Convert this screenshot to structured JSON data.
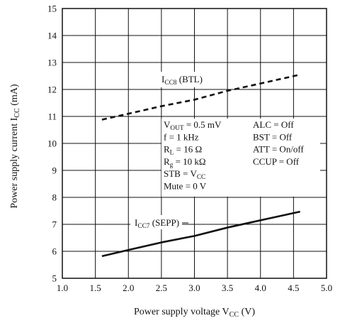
{
  "chart_data": {
    "type": "line",
    "xlabel": {
      "main": "Power supply voltage  V",
      "sub": "CC",
      "tail": "  (V)"
    },
    "ylabel": {
      "main": "Power supply current  I",
      "sub": "CC",
      "tail": "  (mA)"
    },
    "xlim": [
      1.0,
      5.0
    ],
    "ylim": [
      5,
      15
    ],
    "x_ticks": [
      1.0,
      1.5,
      2.0,
      2.5,
      3.0,
      3.5,
      4.0,
      4.5,
      5.0
    ],
    "x_tick_labels": [
      "1.0",
      "1.5",
      "2.0",
      "2.5",
      "3.0",
      "3.5",
      "4.0",
      "4.5",
      "5.0"
    ],
    "y_ticks": [
      5,
      6,
      7,
      8,
      9,
      10,
      11,
      12,
      13,
      14,
      15
    ],
    "y_tick_labels": [
      "5",
      "6",
      "7",
      "8",
      "9",
      "10",
      "11",
      "12",
      "13",
      "14",
      "15"
    ],
    "grid": true,
    "series": [
      {
        "name": "ICC8 (BTL)",
        "style": "dashed",
        "x": [
          1.6,
          2.0,
          2.5,
          3.0,
          3.5,
          4.0,
          4.6
        ],
        "y": [
          10.88,
          11.1,
          11.38,
          11.62,
          11.95,
          12.22,
          12.55
        ]
      },
      {
        "name": "ICC7 (SEPP)",
        "style": "solid",
        "x": [
          1.6,
          2.0,
          2.5,
          3.0,
          3.5,
          4.0,
          4.6
        ],
        "y": [
          5.82,
          6.05,
          6.33,
          6.57,
          6.88,
          7.15,
          7.47
        ]
      }
    ],
    "series_labels": [
      {
        "main": "I",
        "sub": "CC8",
        "tail": " (BTL)"
      },
      {
        "main": "I",
        "sub": "CC7",
        "tail": " (SEPP)"
      }
    ],
    "conditions_left": [
      {
        "main": "V",
        "sub": "OUT",
        "tail": " = 0.5 mV"
      },
      {
        "main": "f = 1 kHz",
        "sub": "",
        "tail": ""
      },
      {
        "main": "R",
        "sub": "L",
        "tail": " = 16 Ω"
      },
      {
        "main": "R",
        "sub": "g",
        "tail": " = 10 kΩ"
      },
      {
        "main": "STB = V",
        "sub": "CC",
        "tail": ""
      },
      {
        "main": "Mute = 0 V",
        "sub": "",
        "tail": ""
      }
    ],
    "conditions_right": [
      "ALC = Off",
      "BST = Off",
      "ATT = On/off",
      "CCUP = Off"
    ]
  }
}
